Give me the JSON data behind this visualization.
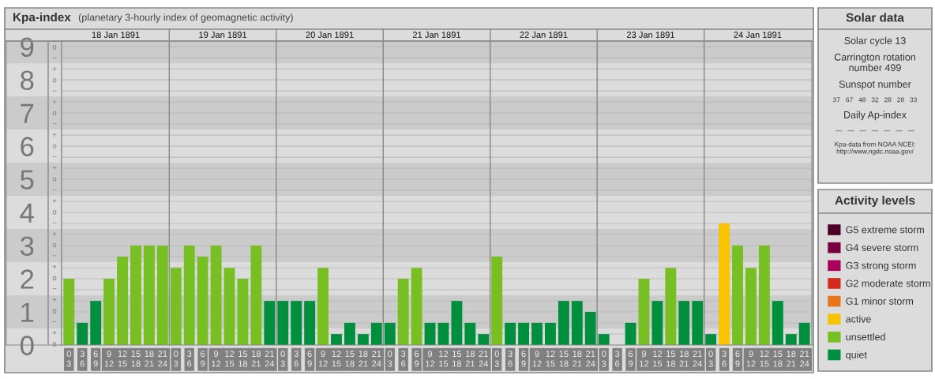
{
  "chart_data": [
    {
      "type": "bar",
      "title": "Kpa-index",
      "subtitle": "(planetary 3-hourly index of geomagnetic activity)",
      "categories": [
        "0\n3",
        "3\n6",
        "6\n9",
        "9\n12",
        "12\n15",
        "15\n18",
        "18\n21",
        "21\n24",
        "0\n3",
        "3\n6",
        "6\n9",
        "9\n12",
        "12\n15",
        "15\n18",
        "18\n21",
        "21\n24",
        "0\n3",
        "3\n6",
        "6\n9",
        "9\n12",
        "12\n15",
        "15\n18",
        "18\n21",
        "21\n24",
        "0\n3",
        "3\n6",
        "6\n9",
        "9\n12",
        "12\n15",
        "15\n18",
        "18\n21",
        "21\n24",
        "0\n3",
        "3\n6",
        "6\n9",
        "9\n12",
        "12\n15",
        "15\n18",
        "18\n21",
        "21\n24",
        "0\n3",
        "3\n6",
        "6\n9",
        "9\n12",
        "12\n15",
        "15\n18",
        "18\n21",
        "21\n24",
        "0\n3",
        "3\n6",
        "6\n9",
        "9\n12",
        "12\n15",
        "15\n18",
        "18\n21",
        "21\n24"
      ],
      "series": [
        {
          "name": "G5 extreme storm",
          "color": "#4a0024",
          "values": [
            null,
            null,
            null,
            null,
            null,
            null,
            null,
            null,
            null,
            null,
            null,
            null,
            null,
            null,
            null,
            null,
            null,
            null,
            null,
            null,
            null,
            null,
            null,
            null,
            null,
            null,
            null,
            null,
            null,
            null,
            null,
            null,
            null,
            null,
            null,
            null,
            null,
            null,
            null,
            null,
            null,
            null,
            null,
            null,
            null,
            null,
            null,
            null,
            null,
            null,
            null,
            null,
            null,
            null,
            null,
            null
          ]
        },
        {
          "name": "G4 severe storm",
          "color": "#78003f",
          "values": [
            null,
            null,
            null,
            null,
            null,
            null,
            null,
            null,
            null,
            null,
            null,
            null,
            null,
            null,
            null,
            null,
            null,
            null,
            null,
            null,
            null,
            null,
            null,
            null,
            null,
            null,
            null,
            null,
            null,
            null,
            null,
            null,
            null,
            null,
            null,
            null,
            null,
            null,
            null,
            null,
            null,
            null,
            null,
            null,
            null,
            null,
            null,
            null,
            null,
            null,
            null,
            null,
            null,
            null,
            null,
            null
          ]
        },
        {
          "name": "G3 strong storm",
          "color": "#a8005c",
          "values": [
            null,
            null,
            null,
            null,
            null,
            null,
            null,
            null,
            null,
            null,
            null,
            null,
            null,
            null,
            null,
            null,
            null,
            null,
            null,
            null,
            null,
            null,
            null,
            null,
            null,
            null,
            null,
            null,
            null,
            null,
            null,
            null,
            null,
            null,
            null,
            null,
            null,
            null,
            null,
            null,
            null,
            null,
            null,
            null,
            null,
            null,
            null,
            null,
            null,
            null,
            null,
            null,
            null,
            null,
            null,
            null
          ]
        },
        {
          "name": "G2 moderate storm",
          "color": "#d42a1c",
          "values": [
            null,
            null,
            null,
            null,
            null,
            null,
            null,
            null,
            null,
            null,
            null,
            null,
            null,
            null,
            null,
            null,
            null,
            null,
            null,
            null,
            null,
            null,
            null,
            null,
            null,
            null,
            null,
            null,
            null,
            null,
            null,
            null,
            null,
            null,
            null,
            null,
            null,
            null,
            null,
            null,
            null,
            null,
            null,
            null,
            null,
            null,
            null,
            null,
            null,
            null,
            null,
            null,
            null,
            null,
            null,
            null
          ]
        },
        {
          "name": "G1 minor storm",
          "color": "#e8751a",
          "values": [
            null,
            null,
            null,
            null,
            null,
            null,
            null,
            null,
            null,
            null,
            null,
            null,
            null,
            null,
            null,
            null,
            null,
            null,
            null,
            null,
            null,
            null,
            null,
            null,
            null,
            null,
            null,
            null,
            null,
            null,
            null,
            null,
            null,
            null,
            null,
            null,
            null,
            null,
            null,
            null,
            null,
            null,
            null,
            null,
            null,
            null,
            null,
            null,
            null,
            null,
            null,
            null,
            null,
            null,
            null,
            null
          ]
        },
        {
          "name": "active",
          "color": "#f8c300",
          "values": [
            null,
            null,
            null,
            null,
            null,
            null,
            null,
            null,
            null,
            null,
            null,
            null,
            null,
            null,
            null,
            null,
            null,
            null,
            null,
            null,
            null,
            null,
            null,
            null,
            null,
            null,
            null,
            null,
            null,
            null,
            null,
            null,
            null,
            null,
            null,
            null,
            null,
            null,
            null,
            null,
            null,
            null,
            null,
            null,
            null,
            null,
            null,
            null,
            null,
            3.67,
            null,
            null,
            null,
            null,
            null,
            null
          ]
        },
        {
          "name": "unsettled",
          "color": "#77bf22",
          "values": [
            2,
            null,
            null,
            2,
            2.67,
            3,
            3,
            3,
            2.33,
            3,
            2.67,
            3,
            2.33,
            2,
            3,
            null,
            null,
            null,
            null,
            2.33,
            null,
            null,
            null,
            null,
            null,
            2,
            2.33,
            null,
            null,
            null,
            null,
            null,
            2.67,
            null,
            null,
            null,
            null,
            null,
            null,
            null,
            null,
            null,
            null,
            2,
            null,
            2.33,
            null,
            null,
            null,
            null,
            3,
            2.33,
            3,
            null,
            null,
            null
          ]
        },
        {
          "name": "quiet",
          "color": "#008f3c",
          "values": [
            null,
            0.67,
            1.33,
            null,
            null,
            null,
            null,
            null,
            null,
            null,
            null,
            null,
            null,
            null,
            null,
            1.33,
            1.33,
            1.33,
            1.33,
            null,
            0.33,
            0.67,
            0.33,
            0.67,
            0.67,
            null,
            null,
            0.67,
            0.67,
            1.33,
            0.67,
            0.33,
            null,
            0.67,
            0.67,
            0.67,
            0.67,
            1.33,
            1.33,
            1,
            0.33,
            0,
            0.67,
            null,
            1.33,
            null,
            1.33,
            1.33,
            0.33,
            null,
            null,
            null,
            null,
            1.33,
            0.33,
            0.67
          ]
        }
      ],
      "ylim": [
        0,
        9.17
      ],
      "yticks": [
        0,
        1,
        2,
        3,
        4,
        5,
        6,
        7,
        8,
        9
      ],
      "bands": [
        {
          "axis": "y",
          "from": 0.5,
          "to": 1.5,
          "color": "#cbcbcb"
        },
        {
          "axis": "y",
          "from": 2.5,
          "to": 3.5,
          "color": "#cbcbcb"
        },
        {
          "axis": "y",
          "from": 4.5,
          "to": 5.5,
          "color": "#cbcbcb"
        },
        {
          "axis": "y",
          "from": 6.5,
          "to": 7.5,
          "color": "#cbcbcb"
        },
        {
          "axis": "y",
          "from": 8.5,
          "to": 9.17,
          "color": "#cbcbcb"
        }
      ],
      "grid": "y",
      "legend": "right",
      "legend_title": "Activity levels",
      "annotations": [
        "o\n−\n+\no\n−\n+\no\n−\n+\no\n−\n+\no\n−\n+\no\n−\n+\no\n−\n+\no\n−\n+\no\n−\n+\no",
        "18 Jan 1891",
        "19 Jan 1891",
        "20 Jan 1891",
        "21 Jan 1891",
        "22 Jan 1891",
        "23 Jan 1891",
        "24 Jan 1891"
      ]
    },
    {
      "type": "other",
      "title": "Solar data",
      "annotations": [
        "Solar cycle 13",
        "Carrington rotation\nnumber 499",
        "Sunspot number",
        "37   67   48   32   28   28   33",
        "Daily Ap-index",
        "—   —   —   —   —   —   —",
        "Kpa-data from NOAA NCEI:\nhttp://www.ngdc.noaa.gov/"
      ]
    }
  ]
}
